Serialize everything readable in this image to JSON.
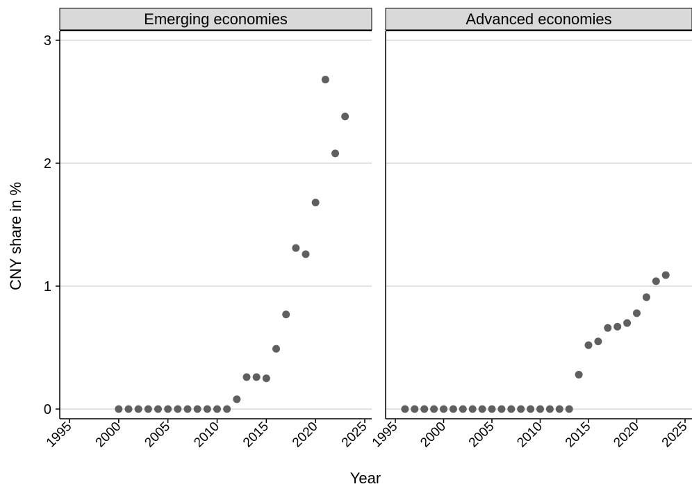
{
  "chart_data": {
    "type": "scatter",
    "ylabel": "CNY share in %",
    "xlabel": "Year",
    "ylim": [
      0,
      3
    ],
    "yticks": [
      0,
      1,
      2,
      3
    ],
    "xlim": [
      1995,
      2025
    ],
    "xticks": [
      1995,
      2000,
      2005,
      2010,
      2015,
      2020,
      2025
    ],
    "grid": true,
    "marker_color": "#5f5f5f",
    "panel_header_color": "#d9d9d9",
    "panels": [
      {
        "title": "Emerging economies",
        "x": [
          2000,
          2001,
          2002,
          2003,
          2004,
          2005,
          2006,
          2007,
          2008,
          2009,
          2010,
          2011,
          2012,
          2013,
          2014,
          2015,
          2016,
          2017,
          2018,
          2019,
          2020,
          2021,
          2022,
          2023
        ],
        "y": [
          0,
          0,
          0,
          0,
          0,
          0,
          0,
          0,
          0,
          0,
          0,
          0,
          0.08,
          0.26,
          0.26,
          0.25,
          0.49,
          0.77,
          1.31,
          1.26,
          1.68,
          2.68,
          2.08,
          2.38
        ]
      },
      {
        "title": "Advanced economies",
        "x": [
          1996,
          1997,
          1998,
          1999,
          2000,
          2001,
          2002,
          2003,
          2004,
          2005,
          2006,
          2007,
          2008,
          2009,
          2010,
          2011,
          2012,
          2013,
          2014,
          2015,
          2016,
          2017,
          2018,
          2019,
          2020,
          2021,
          2022,
          2023
        ],
        "y": [
          0,
          0,
          0,
          0,
          0,
          0,
          0,
          0,
          0,
          0,
          0,
          0,
          0,
          0,
          0,
          0,
          0,
          0,
          0.28,
          0.52,
          0.55,
          0.66,
          0.67,
          0.7,
          0.78,
          0.91,
          1.04,
          1.09
        ]
      }
    ]
  }
}
